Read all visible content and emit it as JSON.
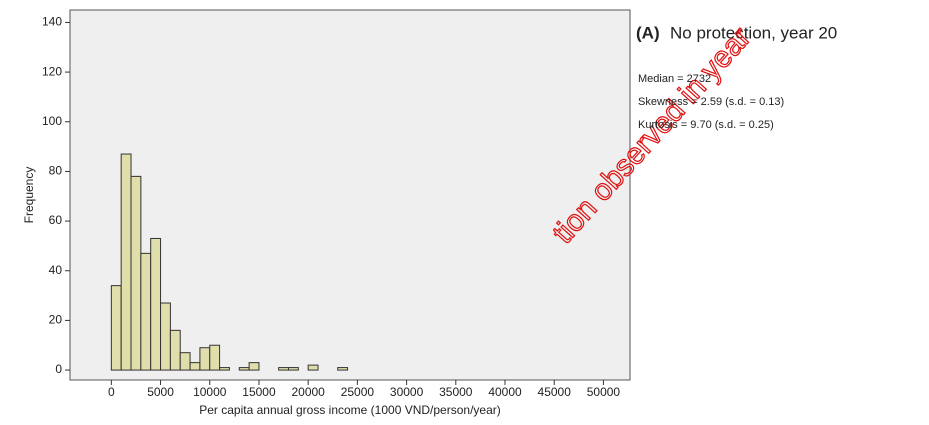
{
  "chart_data": {
    "type": "histogram",
    "panel": "(A)",
    "title": "No protection, year 20",
    "annotations": [
      "Median = 2732",
      "Skewness = 2.59 (s.d. = 0.13)",
      "Kurtosis = 9.70 (s.d. = 0.25)"
    ],
    "watermark": "tion observed in year",
    "x_label": "Per capita annual gross income (1000 VND/person/year)",
    "y_label": "Frequency",
    "bins": [
      0,
      1000,
      2000,
      3000,
      4000,
      5000,
      6000,
      7000,
      8000,
      9000,
      10000,
      11000,
      12000,
      13000,
      14000,
      15000,
      16000,
      17000,
      18000,
      19000,
      20000,
      21000,
      22000,
      23000,
      24000
    ],
    "counts": [
      34,
      87,
      78,
      47,
      53,
      27,
      16,
      7,
      3,
      9,
      10,
      1,
      0,
      1,
      3,
      0,
      0,
      1,
      1,
      0,
      2,
      0,
      0,
      1
    ],
    "color": "#e0deaa",
    "xlim": [
      -4200,
      52700
    ],
    "xticks": [
      0,
      5000,
      10000,
      15000,
      20000,
      25000,
      30000,
      35000,
      40000,
      45000,
      50000
    ],
    "ylim": [
      -4,
      145
    ],
    "yticks": [
      0,
      20,
      40,
      60,
      80,
      100,
      120,
      140
    ]
  }
}
